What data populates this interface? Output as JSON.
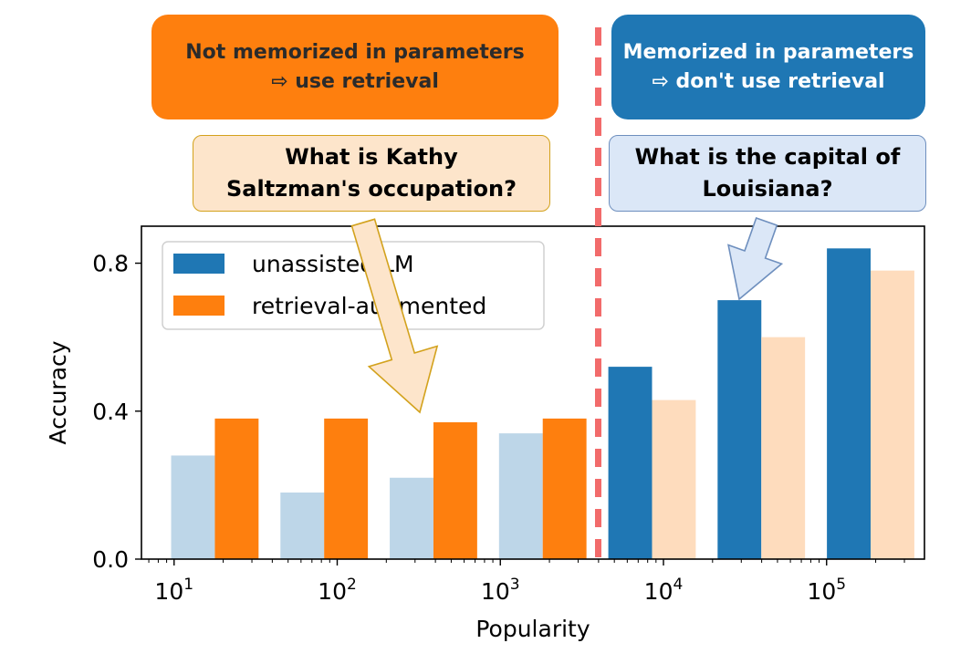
{
  "banners": {
    "left": {
      "line1": "Not memorized in parameters",
      "line2": "⇨ use retrieval",
      "color": "#fe7f0e"
    },
    "right": {
      "line1": "Memorized in parameters",
      "line2": "⇨ don't use retrieval",
      "color": "#1f77b4"
    }
  },
  "questions": {
    "left": {
      "line1": "What is Kathy",
      "line2": "Saltzman's occupation?"
    },
    "right": {
      "line1": "What is the capital of",
      "line2": "Louisiana?"
    }
  },
  "colors": {
    "unassisted": "#1f77b4",
    "unassisted_faded": "#bdd6e8",
    "retrieval": "#fe7f0e",
    "retrieval_faded": "#fedcbd",
    "divider": "#f26b6b"
  },
  "chart_data": {
    "type": "bar",
    "xlabel": "Popularity",
    "ylabel": "Accuracy",
    "x_scale": "log",
    "xlim_exp": [
      0.8,
      5.6
    ],
    "x_ticks": [
      {
        "base": "10",
        "exp": "1"
      },
      {
        "base": "10",
        "exp": "2"
      },
      {
        "base": "10",
        "exp": "3"
      },
      {
        "base": "10",
        "exp": "4"
      },
      {
        "base": "10",
        "exp": "5"
      }
    ],
    "ylim": [
      0,
      0.9
    ],
    "y_ticks": [
      "0.0",
      "0.4",
      "0.8"
    ],
    "bin_centers_exp": [
      1.25,
      1.92,
      2.59,
      3.26,
      3.93,
      4.6,
      5.27
    ],
    "divider_exp": 3.6,
    "legend_position": "top-left",
    "series": [
      {
        "name": "unassisted LM",
        "values": [
          0.28,
          0.18,
          0.22,
          0.34,
          0.52,
          0.7,
          0.84
        ]
      },
      {
        "name": "retrieval-augmented",
        "values": [
          0.38,
          0.38,
          0.37,
          0.38,
          0.43,
          0.6,
          0.78
        ]
      }
    ]
  }
}
